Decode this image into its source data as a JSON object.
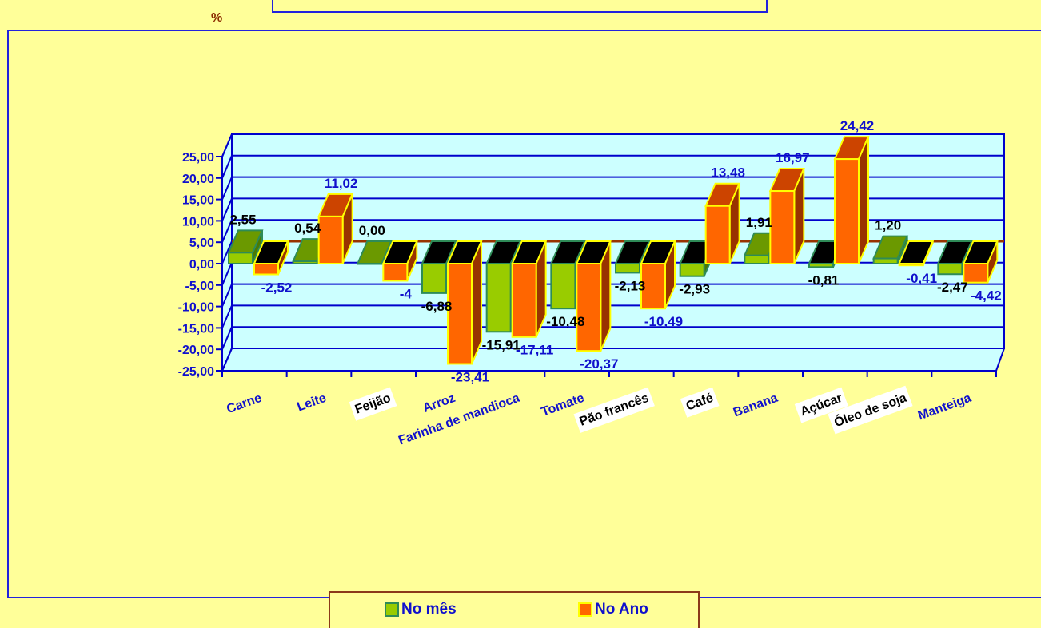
{
  "chart_data": {
    "type": "bar",
    "categories": [
      "Carne",
      "Leite",
      "Feijão",
      "Arroz",
      "Farinha de mandioca",
      "Tomate",
      "Pão francês",
      "Café",
      "Banana",
      "Açúcar",
      "Óleo de soja",
      "Manteiga"
    ],
    "series": [
      {
        "name": "No mês",
        "values": [
          2.55,
          0.54,
          0.0,
          -6.88,
          -15.91,
          -10.48,
          -2.13,
          -2.93,
          1.91,
          -0.81,
          1.2,
          -2.47
        ],
        "labels": [
          "2,55",
          "0,54",
          "0,00",
          "-6,88",
          "-15,91",
          "-10,48",
          "-2,13",
          "-2,93",
          "1,91",
          "-0,81",
          "1,20",
          "-2,47"
        ]
      },
      {
        "name": "No Ano",
        "values": [
          -2.52,
          11.02,
          -4.0,
          -23.41,
          -17.11,
          -20.37,
          -10.49,
          13.48,
          16.97,
          24.42,
          -0.41,
          -4.42
        ],
        "labels": [
          "-2,52",
          "11,02",
          "-4",
          "-23,41",
          "-17,11",
          "-20,37",
          "-10,49",
          "13,48",
          "16,97",
          "24,42",
          "-0,41",
          "-4,42"
        ]
      }
    ],
    "ylabel": "%",
    "ylim": [
      -25,
      25
    ],
    "yticks": [
      "-25,00",
      "-20,00",
      "-15,00",
      "-10,00",
      "-5,00",
      "0,00",
      "5,00",
      "10,00",
      "15,00",
      "20,00",
      "25,00"
    ],
    "grid": true,
    "legend_position": "bottom",
    "colors": {
      "series1": "#99cc00",
      "series1_side": "#4a7a00",
      "series1_top": "#6b9900",
      "series1_border": "#2e8b57",
      "series2": "#ff6600",
      "series2_side": "#993300",
      "series2_top": "#cc4400",
      "series2_border": "#ffff00",
      "plot_bg": "#ccffff",
      "grid": "#0000cc",
      "page_bg": "#ffff99",
      "label_blue": "#1010cc"
    }
  }
}
